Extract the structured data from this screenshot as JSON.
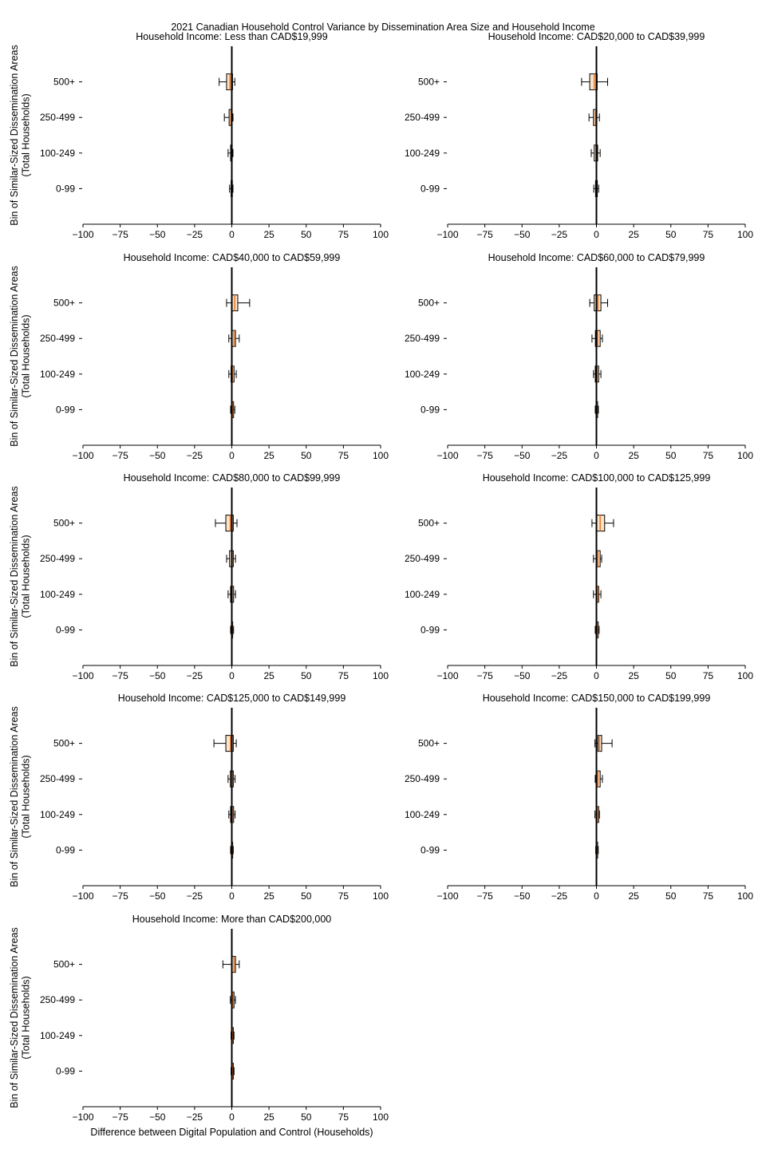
{
  "chart_data": {
    "type": "boxplot",
    "orientation": "horizontal",
    "title": "2021 Canadian Household Control Variance by Dissemination Area Size and Household Income",
    "xlabel": "Difference between Digital Population and Control (Households)",
    "ylabel": "Bin of Similar-Sized Dissemination Areas\n(Total Households)",
    "xlim": [
      -100,
      100
    ],
    "xticks": [
      -100,
      -75,
      -50,
      -25,
      0,
      25,
      50,
      75,
      100
    ],
    "xtick_labels": [
      "−100",
      "−75",
      "−50",
      "−25",
      "0",
      "25",
      "50",
      "75",
      "100"
    ],
    "categories": [
      "0-99",
      "100-249",
      "250-499",
      "500+"
    ],
    "box_fill": "#fde4c8",
    "median_color": "#e8742a",
    "grid": false,
    "panels": [
      {
        "title": "Household Income: Less than CAD$19,999",
        "boxes": [
          {
            "bin": "0-99",
            "whislo": -1.5,
            "q1": -0.5,
            "med": 0,
            "q3": 0.4,
            "whishi": 0.8
          },
          {
            "bin": "100-249",
            "whislo": -2.5,
            "q1": -0.8,
            "med": -0.2,
            "q3": 0.3,
            "whishi": 0.8
          },
          {
            "bin": "250-499",
            "whislo": -5,
            "q1": -1.8,
            "med": -0.6,
            "q3": 0,
            "whishi": 0.8
          },
          {
            "bin": "500+",
            "whislo": -8.5,
            "q1": -3.5,
            "med": -1.2,
            "q3": 0.5,
            "whishi": 2
          }
        ]
      },
      {
        "title": "Household Income: CAD$20,000 to CAD$39,999",
        "boxes": [
          {
            "bin": "0-99",
            "whislo": -1.8,
            "q1": -0.6,
            "med": 0,
            "q3": 0.6,
            "whishi": 1.5
          },
          {
            "bin": "100-249",
            "whislo": -3.5,
            "q1": -1.5,
            "med": -0.3,
            "q3": 0.8,
            "whishi": 2.5
          },
          {
            "bin": "250-499",
            "whislo": -5,
            "q1": -2,
            "med": -0.7,
            "q3": 0.3,
            "whishi": 2
          },
          {
            "bin": "500+",
            "whislo": -10,
            "q1": -4.5,
            "med": -1.5,
            "q3": 0.5,
            "whishi": 7.5
          }
        ]
      },
      {
        "title": "Household Income: CAD$40,000 to CAD$59,999",
        "boxes": [
          {
            "bin": "0-99",
            "whislo": -0.8,
            "q1": 0,
            "med": 0.5,
            "q3": 1.2,
            "whishi": 2
          },
          {
            "bin": "100-249",
            "whislo": -2,
            "q1": -0.5,
            "med": 0.5,
            "q3": 1.5,
            "whishi": 3
          },
          {
            "bin": "250-499",
            "whislo": -2,
            "q1": 0,
            "med": 1.5,
            "q3": 2.5,
            "whishi": 5
          },
          {
            "bin": "500+",
            "whislo": -3.5,
            "q1": 0,
            "med": 2,
            "q3": 4,
            "whishi": 12
          }
        ]
      },
      {
        "title": "Household Income: CAD$60,000 to CAD$79,999",
        "boxes": [
          {
            "bin": "0-99",
            "whislo": -0.8,
            "q1": -0.3,
            "med": 0.3,
            "q3": 0.8,
            "whishi": 1.3
          },
          {
            "bin": "100-249",
            "whislo": -2,
            "q1": -0.8,
            "med": 0.5,
            "q3": 1.5,
            "whishi": 3
          },
          {
            "bin": "250-499",
            "whislo": -3,
            "q1": -0.7,
            "med": 0.8,
            "q3": 2.5,
            "whishi": 4
          },
          {
            "bin": "500+",
            "whislo": -4.5,
            "q1": -1.5,
            "med": 1,
            "q3": 3,
            "whishi": 7.5
          }
        ]
      },
      {
        "title": "Household Income: CAD$80,000 to CAD$99,999",
        "boxes": [
          {
            "bin": "0-99",
            "whislo": -0.8,
            "q1": -0.3,
            "med": 0.2,
            "q3": 0.6,
            "whishi": 1.2
          },
          {
            "bin": "100-249",
            "whislo": -2.5,
            "q1": -0.8,
            "med": 0.2,
            "q3": 1.2,
            "whishi": 2.5
          },
          {
            "bin": "250-499",
            "whislo": -3.5,
            "q1": -1.5,
            "med": 0,
            "q3": 1,
            "whishi": 2.5
          },
          {
            "bin": "500+",
            "whislo": -11,
            "q1": -4,
            "med": -1,
            "q3": 1,
            "whishi": 3.5
          }
        ]
      },
      {
        "title": "Household Income: CAD$100,000 to CAD$125,999",
        "boxes": [
          {
            "bin": "0-99",
            "whislo": -0.8,
            "q1": 0,
            "med": 0.5,
            "q3": 1.2,
            "whishi": 1.8
          },
          {
            "bin": "100-249",
            "whislo": -2,
            "q1": 0,
            "med": 0.8,
            "q3": 1.5,
            "whishi": 3
          },
          {
            "bin": "250-499",
            "whislo": -2,
            "q1": 0,
            "med": 1,
            "q3": 2.5,
            "whishi": 3.5
          },
          {
            "bin": "500+",
            "whislo": -3,
            "q1": 0,
            "med": 2.5,
            "q3": 5.5,
            "whishi": 11.5
          }
        ]
      },
      {
        "title": "Household Income: CAD$125,000 to CAD$149,999",
        "boxes": [
          {
            "bin": "0-99",
            "whislo": -0.8,
            "q1": -0.3,
            "med": 0.2,
            "q3": 0.6,
            "whishi": 1
          },
          {
            "bin": "100-249",
            "whislo": -2,
            "q1": -0.8,
            "med": 0.3,
            "q3": 1.2,
            "whishi": 2.2
          },
          {
            "bin": "250-499",
            "whislo": -2.5,
            "q1": -1,
            "med": 0.2,
            "q3": 1,
            "whishi": 2.2
          },
          {
            "bin": "500+",
            "whislo": -12,
            "q1": -4,
            "med": -0.8,
            "q3": 1,
            "whishi": 3
          }
        ]
      },
      {
        "title": "Household Income: CAD$150,000 to CAD$199,999",
        "boxes": [
          {
            "bin": "0-99",
            "whislo": -0.5,
            "q1": 0,
            "med": 0.3,
            "q3": 0.8,
            "whishi": 1.2
          },
          {
            "bin": "100-249",
            "whislo": -1,
            "q1": 0,
            "med": 0.7,
            "q3": 1.5,
            "whishi": 2
          },
          {
            "bin": "250-499",
            "whislo": -0.8,
            "q1": 0,
            "med": 1,
            "q3": 2.5,
            "whishi": 4
          },
          {
            "bin": "500+",
            "whislo": -1,
            "q1": 1,
            "med": 2,
            "q3": 3.5,
            "whishi": 10.5
          }
        ]
      },
      {
        "title": "Household Income: More than CAD$200,000",
        "boxes": [
          {
            "bin": "0-99",
            "whislo": -0.5,
            "q1": 0,
            "med": 0.4,
            "q3": 1,
            "whishi": 1.5
          },
          {
            "bin": "100-249",
            "whislo": -0.5,
            "q1": 0,
            "med": 0.4,
            "q3": 1,
            "whishi": 1.5
          },
          {
            "bin": "250-499",
            "whislo": -1,
            "q1": 0,
            "med": 0.7,
            "q3": 1.5,
            "whishi": 2.5
          },
          {
            "bin": "500+",
            "whislo": -6,
            "q1": 0,
            "med": 1.5,
            "q3": 2.5,
            "whishi": 5
          }
        ]
      }
    ]
  }
}
